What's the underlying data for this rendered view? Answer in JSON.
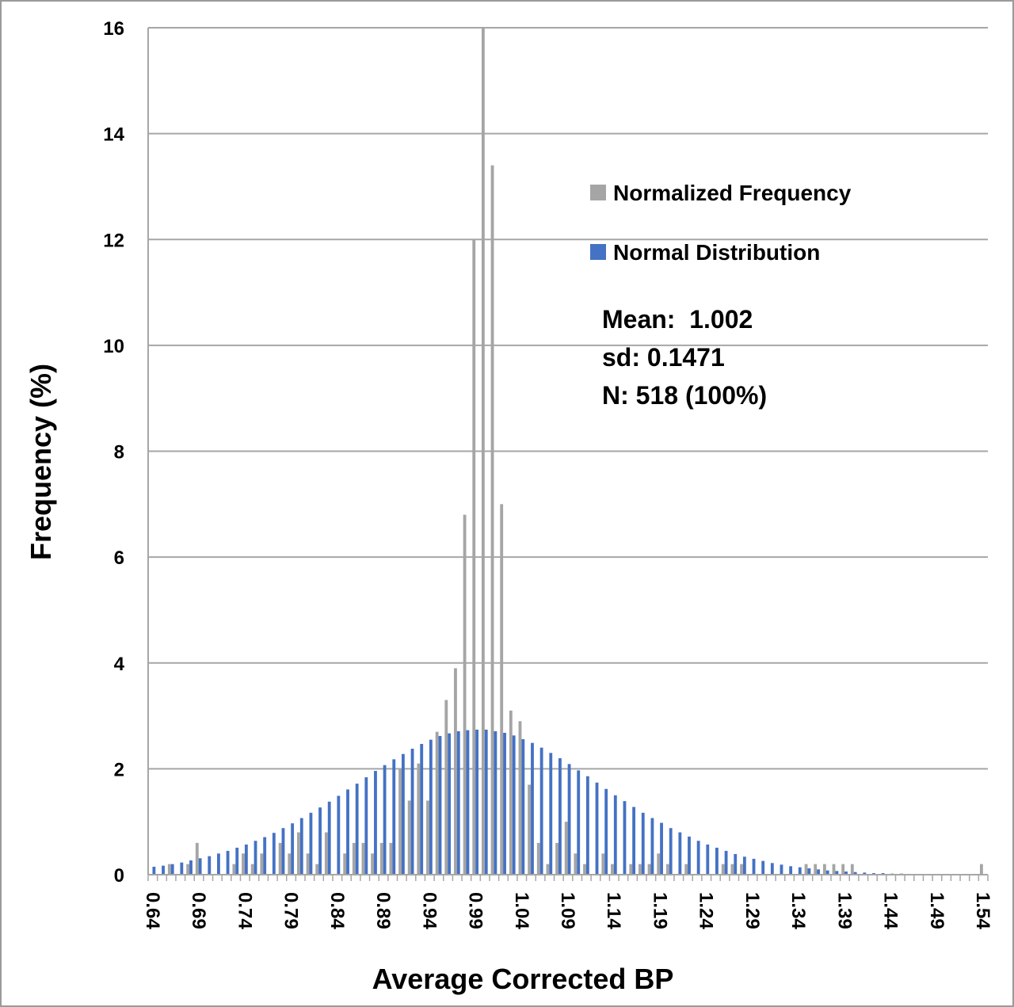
{
  "chart_data": {
    "type": "bar",
    "xlabel": "Average Corrected BP",
    "ylabel": "Frequency (%)",
    "ylim": [
      0,
      16
    ],
    "yticks": [
      "0",
      "2",
      "4",
      "6",
      "8",
      "10",
      "12",
      "14",
      "16"
    ],
    "x_start": 0.64,
    "x_step": 0.01,
    "xtick_labels": [
      "0.64",
      "0.69",
      "0.74",
      "0.79",
      "0.84",
      "0.89",
      "0.94",
      "0.99",
      "1.04",
      "1.09",
      "1.14",
      "1.19",
      "1.24",
      "1.29",
      "1.34",
      "1.39",
      "1.44",
      "1.49",
      "1.54"
    ],
    "grid": true,
    "legend_position": "top-right",
    "series": [
      {
        "name": "Normalized Frequency",
        "color": "#a5a5a5",
        "values": [
          0,
          0,
          0.2,
          0,
          0.2,
          0.6,
          0,
          0,
          0,
          0.2,
          0.4,
          0.2,
          0.4,
          0,
          0.6,
          0.4,
          0.8,
          0.4,
          0.2,
          0.8,
          0,
          0.4,
          0.6,
          0.6,
          0.4,
          0.6,
          0.6,
          2.0,
          1.4,
          2.1,
          1.4,
          2.7,
          3.3,
          3.9,
          6.8,
          12.0,
          16.0,
          13.4,
          7.0,
          3.1,
          2.9,
          1.7,
          0.6,
          0.2,
          0.6,
          1.0,
          0.4,
          0.2,
          0,
          0.4,
          0.2,
          0,
          0.2,
          0.2,
          0.2,
          0.4,
          0.2,
          0,
          0.2,
          0,
          0,
          0,
          0.2,
          0.2,
          0.2,
          0,
          0,
          0,
          0,
          0,
          0,
          0.2,
          0.2,
          0.2,
          0.2,
          0.2,
          0.2,
          0,
          0,
          0,
          0,
          0,
          0,
          0,
          0,
          0,
          0,
          0,
          0,
          0,
          0.2
        ]
      },
      {
        "name": "Normal Distribution",
        "color": "#4472c4",
        "values": [
          0.15,
          0.17,
          0.2,
          0.23,
          0.27,
          0.31,
          0.35,
          0.4,
          0.45,
          0.51,
          0.57,
          0.64,
          0.71,
          0.79,
          0.88,
          0.97,
          1.07,
          1.17,
          1.27,
          1.38,
          1.49,
          1.61,
          1.72,
          1.84,
          1.96,
          2.07,
          2.18,
          2.28,
          2.38,
          2.47,
          2.55,
          2.62,
          2.67,
          2.71,
          2.73,
          2.74,
          2.74,
          2.71,
          2.68,
          2.63,
          2.56,
          2.49,
          2.4,
          2.3,
          2.2,
          2.09,
          1.97,
          1.86,
          1.74,
          1.62,
          1.5,
          1.39,
          1.28,
          1.17,
          1.07,
          0.98,
          0.88,
          0.8,
          0.72,
          0.64,
          0.57,
          0.51,
          0.45,
          0.39,
          0.34,
          0.3,
          0.26,
          0.22,
          0.19,
          0.16,
          0.14,
          0.12,
          0.1,
          0.08,
          0.07,
          0.06,
          0.05,
          0.04,
          0.03,
          0.03,
          0.02,
          0.02,
          0.01,
          0.01,
          0.01,
          0.01,
          0.0,
          0.0,
          0.0,
          0.0,
          0.0
        ]
      }
    ],
    "annotations": [
      "Mean:  1.002",
      "sd: 0.1471",
      "N: 518 (100%)"
    ]
  }
}
